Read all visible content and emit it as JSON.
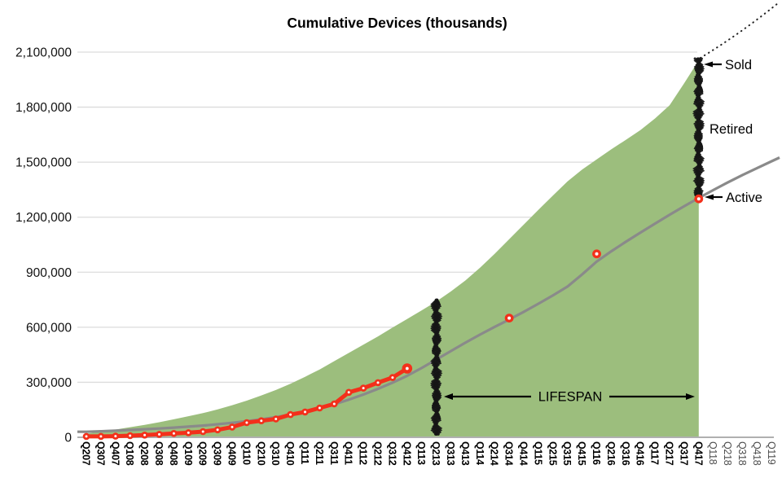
{
  "title": "Cumulative Devices (thousands)",
  "colors": {
    "sold_area": "#9cbe7d",
    "active_line": "#8a8a8a",
    "reported_red": "#f3301b",
    "gridline": "#dcdcdc",
    "axis_baseline": "#b0b0b0",
    "retired_scribble": "#151515",
    "annotation_text": "#000000",
    "future_tick_label": "#4d4d4d"
  },
  "chart_data": {
    "type": "area",
    "title": "Cumulative Devices (thousands)",
    "x_axis": {
      "labels": [
        "Q207",
        "Q307",
        "Q407",
        "Q108",
        "Q208",
        "Q308",
        "Q408",
        "Q109",
        "Q209",
        "Q309",
        "Q409",
        "Q110",
        "Q210",
        "Q310",
        "Q410",
        "Q111",
        "Q211",
        "Q311",
        "Q411",
        "Q112",
        "Q212",
        "Q312",
        "Q412",
        "Q113",
        "Q213",
        "Q313",
        "Q413",
        "Q114",
        "Q214",
        "Q314",
        "Q414",
        "Q115",
        "Q215",
        "Q315",
        "Q415",
        "Q116",
        "Q216",
        "Q316",
        "Q416",
        "Q117",
        "Q217",
        "Q317",
        "Q417",
        "Q118",
        "Q218",
        "Q318",
        "Q418",
        "Q119"
      ],
      "emphasized_through_label": "Q417",
      "label_rotation_deg": 90
    },
    "y_axis": {
      "range": [
        0,
        2100000
      ],
      "grid": true,
      "ticks": [
        {
          "label": "0",
          "value": 0
        },
        {
          "label": "300,000",
          "value": 300000
        },
        {
          "label": "600,000",
          "value": 600000
        },
        {
          "label": "900,000",
          "value": 900000
        },
        {
          "label": "1,200,000",
          "value": 1200000
        },
        {
          "label": "1,500,000",
          "value": 1500000
        },
        {
          "label": "1,800,000",
          "value": 1800000
        },
        {
          "label": "2,100,000",
          "value": 2100000
        }
      ]
    },
    "series": [
      {
        "name": "sold-cumulative",
        "type": "area",
        "color": "#9cbe7d",
        "first_category": "Q207",
        "last_category": "Q417",
        "values": [
          20000,
          30000,
          42000,
          55000,
          68000,
          82000,
          98000,
          115000,
          132000,
          152000,
          175000,
          200000,
          228000,
          258000,
          292000,
          330000,
          370000,
          415000,
          460000,
          505000,
          550000,
          598000,
          645000,
          692000,
          740000,
          795000,
          855000,
          925000,
          1000000,
          1080000,
          1160000,
          1240000,
          1318000,
          1395000,
          1460000,
          1515000,
          1570000,
          1622000,
          1675000,
          1738000,
          1810000,
          1930000,
          2055000
        ]
      },
      {
        "name": "active-installed-base-model",
        "type": "line",
        "color": "#8a8a8a",
        "first_category": "Q207",
        "last_category": "Q119",
        "values": [
          30000,
          33000,
          36000,
          40000,
          44000,
          48000,
          53000,
          58000,
          64000,
          71000,
          79000,
          88000,
          98000,
          110000,
          124000,
          140000,
          158000,
          180000,
          205000,
          233000,
          264000,
          298000,
          335000,
          378000,
          424000,
          470000,
          516000,
          560000,
          602000,
          642000,
          684000,
          728000,
          774000,
          822000,
          888000,
          958000,
          1014000,
          1066000,
          1116000,
          1165000,
          1213000,
          1260000,
          1305000,
          1348000,
          1390000,
          1430000,
          1468000,
          1505000
        ]
      },
      {
        "name": "reported-devices",
        "type": "line-markers",
        "color": "#f3301b",
        "first_category": "Q207",
        "last_category": "Q412",
        "values": [
          5000,
          5000,
          6000,
          9000,
          12000,
          16000,
          21000,
          25000,
          31000,
          41000,
          56000,
          80000,
          90000,
          100000,
          124000,
          138000,
          160000,
          182000,
          245000,
          268000,
          298000,
          326000,
          375000
        ]
      },
      {
        "name": "reported-milestones",
        "type": "scatter",
        "color": "#f3301b",
        "points": [
          {
            "category": "Q314",
            "value": 650000
          },
          {
            "category": "Q116",
            "value": 1000000
          },
          {
            "category": "Q417",
            "value": 1300000
          }
        ]
      }
    ],
    "retired_bars": [
      {
        "category": "Q213",
        "from": 0,
        "to": 740000
      },
      {
        "category": "Q417",
        "from": 1300000,
        "to": 2055000
      }
    ],
    "projection": {
      "style": "dotted",
      "from": {
        "category": "Q417",
        "value": 2055000
      },
      "to_value": 2370000
    },
    "annotations": {
      "sold": "Sold",
      "retired": "Retired",
      "active": "Active",
      "lifespan": "LIFESPAN"
    }
  }
}
